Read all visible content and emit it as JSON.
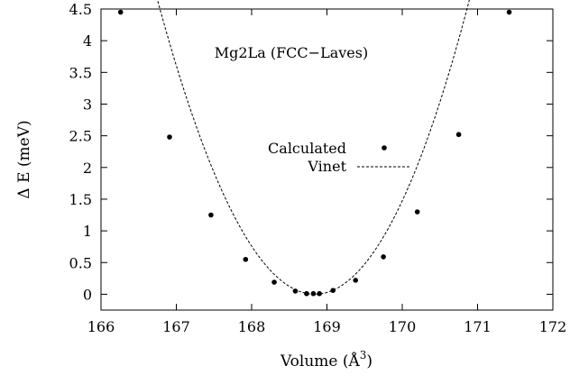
{
  "chart_data": {
    "type": "scatter",
    "title": "Mg2La (FCC−Laves)",
    "xlabel": "Volume (Å",
    "xlabel_sup": "3",
    "xlabel_suffix": ")",
    "ylabel": "Δ E  (meV)",
    "xlim": [
      166,
      172
    ],
    "ylim": [
      -0.25,
      4.5
    ],
    "x_ticks": [
      "166",
      "167",
      "168",
      "169",
      "170",
      "171",
      "172"
    ],
    "y_ticks": [
      "0",
      "0.5",
      "1",
      "1.5",
      "2",
      "2.5",
      "3",
      "3.5",
      "4",
      "4.5"
    ],
    "grid": false,
    "legend_position": "center-right",
    "series": [
      {
        "name": "Calculated",
        "kind": "points",
        "color": "#000000",
        "x": [
          166.26,
          166.91,
          167.46,
          167.92,
          168.3,
          168.58,
          168.73,
          168.82,
          168.9,
          169.08,
          169.38,
          169.75,
          170.2,
          170.75,
          171.42
        ],
        "y": [
          4.45,
          2.48,
          1.25,
          0.55,
          0.19,
          0.05,
          0.01,
          0.01,
          0.01,
          0.06,
          0.22,
          0.59,
          1.3,
          2.52,
          4.45
        ]
      },
      {
        "name": "Vinet",
        "kind": "dashed-line",
        "color": "#000000",
        "v0": 168.84,
        "a": 1.0835,
        "b": 0.0099
      }
    ]
  }
}
